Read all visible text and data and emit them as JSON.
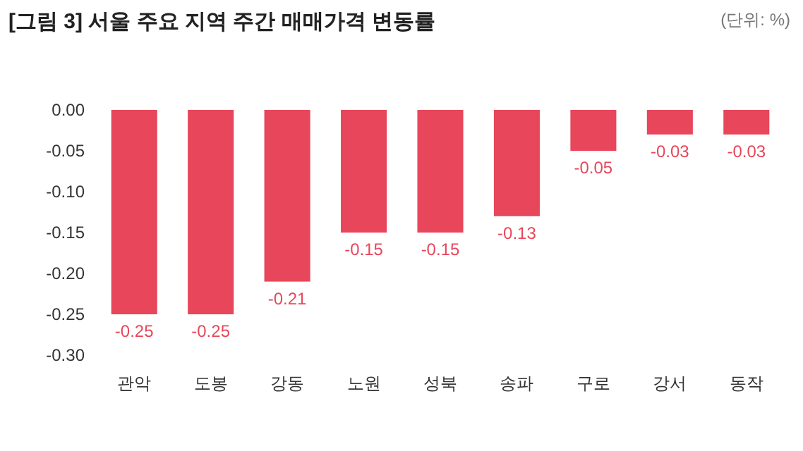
{
  "chart_data": {
    "type": "bar",
    "title": "[그림 3] 서울 주요 지역 주간 매매가격 변동률",
    "annotations": [
      "(단위: %)"
    ],
    "categories": [
      "관악",
      "도봉",
      "강동",
      "노원",
      "성북",
      "송파",
      "구로",
      "강서",
      "동작"
    ],
    "values": [
      -0.25,
      -0.25,
      -0.21,
      -0.15,
      -0.15,
      -0.13,
      -0.05,
      -0.03,
      -0.03
    ],
    "color": "#e8465a",
    "ylim": [
      -0.3,
      0
    ],
    "yticks": [
      {
        "value": 0,
        "label": "0.00"
      },
      {
        "value": -0.05,
        "label": "-0.05"
      },
      {
        "value": -0.1,
        "label": "-0.10"
      },
      {
        "value": -0.15,
        "label": "-0.15"
      },
      {
        "value": -0.2,
        "label": "-0.20"
      },
      {
        "value": -0.25,
        "label": "-0.25"
      },
      {
        "value": -0.3,
        "label": "-0.30"
      }
    ],
    "data_labels": true
  }
}
